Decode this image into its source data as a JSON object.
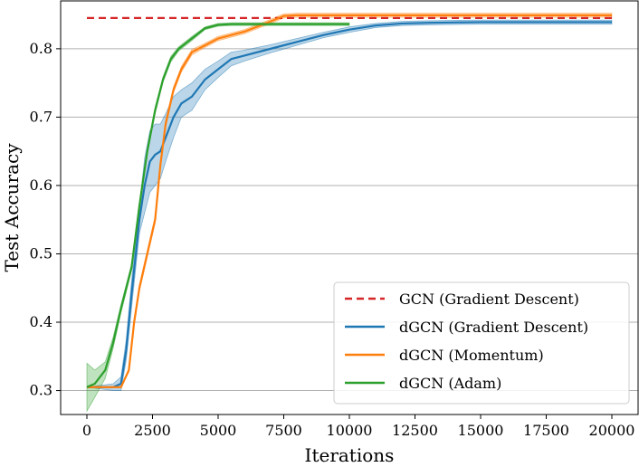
{
  "chart_data": {
    "type": "line",
    "title": "",
    "xlabel": "Iterations",
    "ylabel": "Test Accuracy",
    "xlim": [
      -1000,
      21000
    ],
    "ylim": [
      0.265,
      0.87
    ],
    "xticks": [
      0,
      2500,
      5000,
      7500,
      10000,
      12500,
      15000,
      17500,
      20000
    ],
    "xtick_labels": [
      "0",
      "2500",
      "5000",
      "7500",
      "10000",
      "12500",
      "15000",
      "17500",
      "20000"
    ],
    "yticks": [
      0.3,
      0.4,
      0.5,
      0.6,
      0.7,
      0.8
    ],
    "ytick_labels": [
      "0.3",
      "0.4",
      "0.5",
      "0.6",
      "0.7",
      "0.8"
    ],
    "grid": "horizontal",
    "legend_position": "lower-right",
    "series": [
      {
        "name": "GCN (Gradient Descent)",
        "color": "#d62728",
        "style": "dashed",
        "x": [
          0,
          20000
        ],
        "y": [
          0.845,
          0.845
        ]
      },
      {
        "name": "dGCN (Gradient Descent)",
        "color": "#1f77b4",
        "style": "solid",
        "x": [
          0,
          1000,
          1300,
          1500,
          1700,
          2000,
          2200,
          2400,
          2600,
          2800,
          3000,
          3300,
          3600,
          4000,
          4500,
          5000,
          5500,
          6000,
          7000,
          8000,
          9000,
          10000,
          11000,
          12000,
          13000,
          15000,
          17500,
          20000
        ],
        "y": [
          0.305,
          0.305,
          0.31,
          0.36,
          0.44,
          0.55,
          0.6,
          0.635,
          0.645,
          0.65,
          0.67,
          0.7,
          0.72,
          0.73,
          0.755,
          0.77,
          0.785,
          0.79,
          0.8,
          0.81,
          0.82,
          0.828,
          0.834,
          0.837,
          0.838,
          0.839,
          0.839,
          0.839
        ],
        "band": [
          0,
          0.005,
          0.01,
          0.015,
          0.02,
          0.02,
          0.04,
          0.045,
          0.045,
          0.04,
          0.035,
          0.03,
          0.02,
          0.02,
          0.015,
          0.012,
          0.01,
          0.008,
          0.006,
          0.005,
          0.004,
          0.004,
          0.003,
          0.003,
          0.003,
          0.003,
          0.003,
          0.003
        ]
      },
      {
        "name": "dGCN (Momentum)",
        "color": "#ff7f0e",
        "style": "solid",
        "x": [
          0,
          1300,
          1600,
          1800,
          2000,
          2300,
          2600,
          2800,
          3000,
          3300,
          3600,
          4000,
          4500,
          5000,
          6000,
          7000,
          7500,
          8000,
          10000,
          15000,
          20000
        ],
        "y": [
          0.305,
          0.305,
          0.33,
          0.4,
          0.45,
          0.5,
          0.55,
          0.63,
          0.69,
          0.74,
          0.77,
          0.795,
          0.805,
          0.815,
          0.825,
          0.84,
          0.848,
          0.849,
          0.849,
          0.849,
          0.849
        ],
        "band": [
          0,
          0,
          0.003,
          0.005,
          0.005,
          0.005,
          0.005,
          0.005,
          0.005,
          0.004,
          0.004,
          0.004,
          0.003,
          0.003,
          0.003,
          0.003,
          0.003,
          0.003,
          0.003,
          0.003,
          0.003
        ]
      },
      {
        "name": "dGCN (Adam)",
        "color": "#2ca02c",
        "style": "solid",
        "x": [
          0,
          300,
          700,
          1000,
          1300,
          1700,
          2000,
          2300,
          2600,
          2900,
          3200,
          3500,
          4000,
          4500,
          5000,
          5500,
          6000,
          7000,
          8000,
          10000
        ],
        "y": [
          0.305,
          0.31,
          0.33,
          0.37,
          0.42,
          0.48,
          0.57,
          0.65,
          0.71,
          0.755,
          0.785,
          0.8,
          0.815,
          0.83,
          0.835,
          0.836,
          0.836,
          0.836,
          0.836,
          0.836
        ],
        "band": [
          0.035,
          0.02,
          0.012,
          0.008,
          0.006,
          0.005,
          0.005,
          0.005,
          0.005,
          0.004,
          0.004,
          0.003,
          0.003,
          0.002,
          0.002,
          0.002,
          0.002,
          0.002,
          0.002,
          0.002
        ]
      }
    ]
  }
}
